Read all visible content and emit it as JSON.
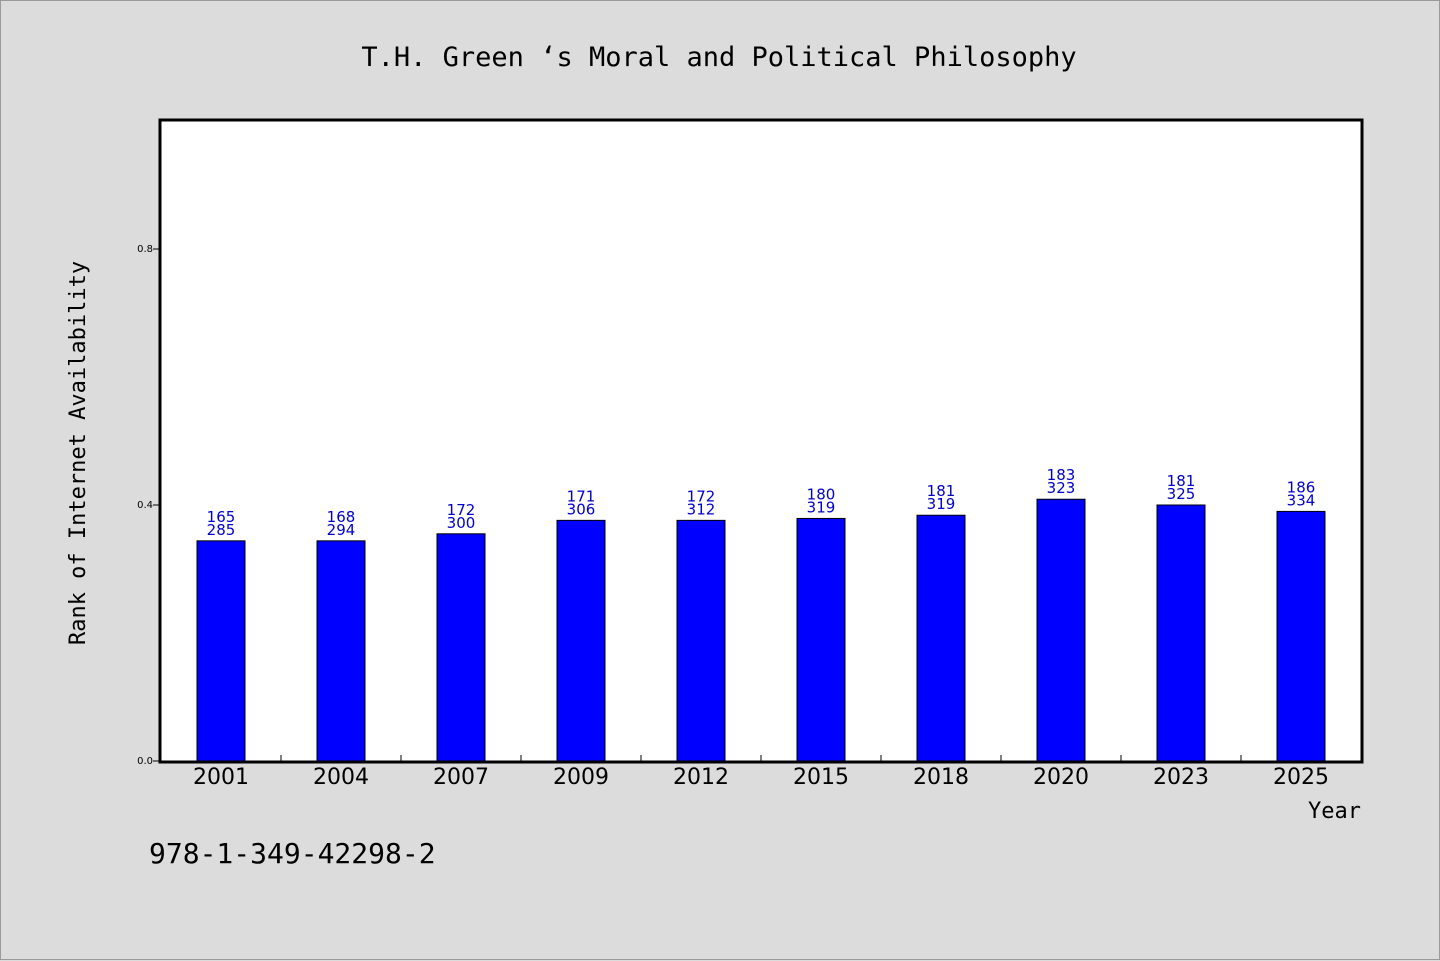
{
  "chart_data": {
    "type": "bar",
    "title": "T.H. Green ‘s Moral and Political Philosophy",
    "xlabel": "Year",
    "ylabel": "Rank of Internet Availability",
    "categories": [
      "2001",
      "2004",
      "2007",
      "2009",
      "2012",
      "2015",
      "2018",
      "2020",
      "2023",
      "2025"
    ],
    "values": [
      0.344,
      0.344,
      0.355,
      0.376,
      0.376,
      0.379,
      0.384,
      0.409,
      0.4,
      0.39
    ],
    "bar_labels_top": [
      "165",
      "168",
      "172",
      "171",
      "172",
      "180",
      "181",
      "183",
      "181",
      "186"
    ],
    "bar_labels_bottom": [
      "285",
      "294",
      "300",
      "306",
      "312",
      "319",
      "319",
      "323",
      "325",
      "334"
    ],
    "ylim": [
      0,
      1.0
    ],
    "yticks": [
      0.0,
      0.4,
      0.8
    ],
    "ytick_labels": [
      "0.0",
      "0.4",
      "0.8"
    ],
    "grid": false,
    "bar_color": "#0000ff",
    "label_color": "#0000cc"
  },
  "footer": {
    "isbn": "978-1-349-42298-2"
  }
}
